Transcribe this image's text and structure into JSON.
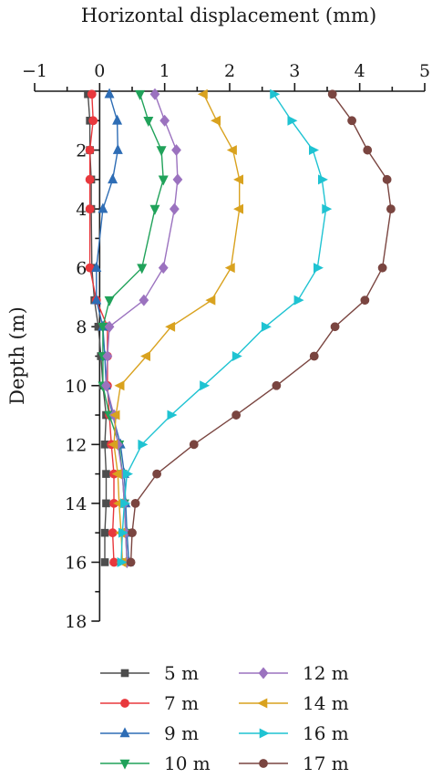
{
  "chart_data": {
    "type": "line",
    "xlabel": "Horizontal displacement (mm)",
    "ylabel": "Depth (m)",
    "x_axis_position": "top",
    "y_inverted": true,
    "xlim": [
      -1,
      5
    ],
    "ylim": [
      0,
      18
    ],
    "x_ticks": [
      "−1",
      "0",
      "1",
      "2",
      "3",
      "4",
      "5"
    ],
    "y_ticks": [
      "2",
      "4",
      "6",
      "8",
      "10",
      "12",
      "14",
      "16",
      "18"
    ],
    "grid": false,
    "legend_position": "bottom",
    "depths": [
      0.1,
      1,
      2,
      3,
      4,
      6,
      7.1,
      8,
      9,
      10,
      11,
      12,
      13,
      14,
      15,
      16
    ],
    "series": [
      {
        "name": "5 m",
        "color": "#4d4d4d",
        "marker": "square",
        "points": [
          [
            -0.18,
            0.1
          ],
          [
            -0.15,
            1
          ],
          [
            -0.15,
            2
          ],
          [
            -0.13,
            3
          ],
          [
            -0.13,
            4
          ],
          [
            -0.12,
            6
          ],
          [
            -0.08,
            7.1
          ],
          [
            -0.02,
            8
          ],
          [
            0.02,
            9
          ],
          [
            0.05,
            10
          ],
          [
            0.1,
            11
          ],
          [
            0.08,
            12
          ],
          [
            0.1,
            13
          ],
          [
            0.1,
            14
          ],
          [
            0.08,
            15
          ],
          [
            0.08,
            16
          ]
        ]
      },
      {
        "name": "7 m",
        "color": "#e8383d",
        "marker": "circle",
        "points": [
          [
            -0.12,
            0.1
          ],
          [
            -0.1,
            1
          ],
          [
            -0.15,
            2
          ],
          [
            -0.15,
            3
          ],
          [
            -0.15,
            4
          ],
          [
            -0.15,
            6
          ],
          [
            -0.05,
            7.1
          ],
          [
            0.12,
            8
          ],
          [
            0.12,
            9
          ],
          [
            0.12,
            10
          ],
          [
            0.15,
            11
          ],
          [
            0.18,
            12
          ],
          [
            0.22,
            13
          ],
          [
            0.22,
            14
          ],
          [
            0.2,
            15
          ],
          [
            0.22,
            16
          ]
        ]
      },
      {
        "name": "9 m",
        "color": "#2e6db5",
        "marker": "triangle-up",
        "points": [
          [
            0.15,
            0.1
          ],
          [
            0.27,
            1
          ],
          [
            0.28,
            2
          ],
          [
            0.2,
            3
          ],
          [
            0.05,
            4
          ],
          [
            -0.05,
            6
          ],
          [
            -0.05,
            7.1
          ],
          [
            0.05,
            8
          ],
          [
            0.08,
            9
          ],
          [
            0.1,
            10
          ],
          [
            0.2,
            11
          ],
          [
            0.32,
            12
          ],
          [
            0.38,
            13
          ],
          [
            0.4,
            14
          ],
          [
            0.42,
            15
          ],
          [
            0.45,
            16
          ]
        ]
      },
      {
        "name": "10 m",
        "color": "#20a25a",
        "marker": "triangle-down",
        "points": [
          [
            0.62,
            0.1
          ],
          [
            0.75,
            1
          ],
          [
            0.95,
            2
          ],
          [
            0.98,
            3
          ],
          [
            0.85,
            4
          ],
          [
            0.65,
            6
          ],
          [
            0.15,
            7.1
          ],
          [
            0.05,
            8
          ],
          [
            0.05,
            9
          ],
          [
            0.05,
            10
          ],
          [
            0.15,
            11
          ],
          [
            0.3,
            12
          ],
          [
            0.35,
            13
          ],
          [
            0.38,
            14
          ],
          [
            0.4,
            15
          ],
          [
            0.42,
            16
          ]
        ]
      },
      {
        "name": "12 m",
        "color": "#9b72bf",
        "marker": "diamond",
        "points": [
          [
            0.85,
            0.1
          ],
          [
            1.0,
            1
          ],
          [
            1.18,
            2
          ],
          [
            1.2,
            3
          ],
          [
            1.15,
            4
          ],
          [
            0.98,
            6
          ],
          [
            0.68,
            7.1
          ],
          [
            0.15,
            8
          ],
          [
            0.12,
            9
          ],
          [
            0.1,
            10
          ],
          [
            0.22,
            11
          ],
          [
            0.28,
            12
          ],
          [
            0.35,
            13
          ],
          [
            0.38,
            14
          ],
          [
            0.4,
            15
          ],
          [
            0.42,
            16
          ]
        ]
      },
      {
        "name": "14 m",
        "color": "#d9a21f",
        "marker": "triangle-left",
        "points": [
          [
            1.6,
            0.1
          ],
          [
            1.8,
            1
          ],
          [
            2.05,
            2
          ],
          [
            2.15,
            3
          ],
          [
            2.15,
            4
          ],
          [
            2.02,
            6
          ],
          [
            1.72,
            7.1
          ],
          [
            1.1,
            8
          ],
          [
            0.72,
            9
          ],
          [
            0.32,
            10
          ],
          [
            0.25,
            11
          ],
          [
            0.22,
            12
          ],
          [
            0.28,
            13
          ],
          [
            0.3,
            14
          ],
          [
            0.33,
            15
          ],
          [
            0.35,
            16
          ]
        ]
      },
      {
        "name": "16 m",
        "color": "#1fc3d2",
        "marker": "triangle-right",
        "points": [
          [
            2.68,
            0.1
          ],
          [
            2.95,
            1
          ],
          [
            3.28,
            2
          ],
          [
            3.42,
            3
          ],
          [
            3.48,
            4
          ],
          [
            3.35,
            6
          ],
          [
            3.05,
            7.1
          ],
          [
            2.55,
            8
          ],
          [
            2.1,
            9
          ],
          [
            1.6,
            10
          ],
          [
            1.1,
            11
          ],
          [
            0.65,
            12
          ],
          [
            0.42,
            13
          ],
          [
            0.38,
            14
          ],
          [
            0.35,
            15
          ],
          [
            0.33,
            16
          ]
        ]
      },
      {
        "name": "17 m",
        "color": "#7a4540",
        "marker": "circle",
        "points": [
          [
            3.58,
            0.1
          ],
          [
            3.88,
            1
          ],
          [
            4.12,
            2
          ],
          [
            4.42,
            3
          ],
          [
            4.48,
            4
          ],
          [
            4.35,
            6
          ],
          [
            4.08,
            7.1
          ],
          [
            3.62,
            8
          ],
          [
            3.3,
            9
          ],
          [
            2.72,
            10
          ],
          [
            2.1,
            11
          ],
          [
            1.45,
            12
          ],
          [
            0.88,
            13
          ],
          [
            0.55,
            14
          ],
          [
            0.5,
            15
          ],
          [
            0.48,
            16
          ]
        ]
      }
    ]
  }
}
